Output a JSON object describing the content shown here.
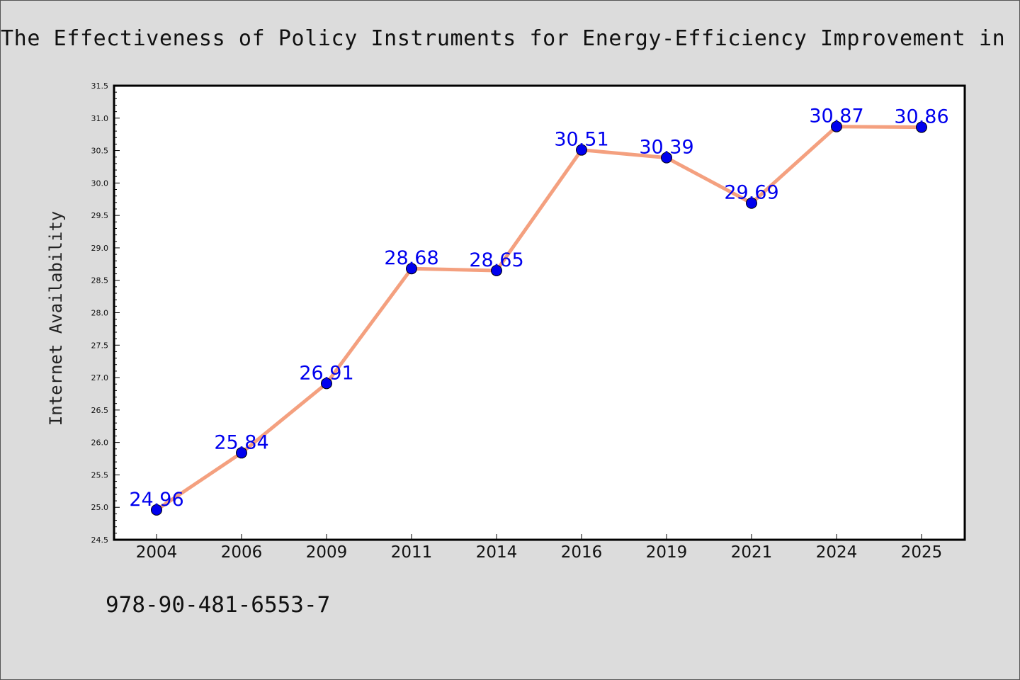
{
  "chart_data": {
    "type": "line",
    "title": "The Effectiveness of Policy Instruments for Energy-Efficiency Improvement in Fir",
    "ylabel": "Internet Availability",
    "xlabel": "",
    "categories": [
      "2004",
      "2006",
      "2009",
      "2011",
      "2014",
      "2016",
      "2019",
      "2021",
      "2024",
      "2025"
    ],
    "series": [
      {
        "values": [
          24.96,
          25.84,
          26.91,
          28.68,
          28.65,
          30.51,
          30.39,
          29.69,
          30.87,
          30.86
        ],
        "labels": [
          "24.96",
          "25.84",
          "26.91",
          "28.68",
          "28.65",
          "30.51",
          "30.39",
          "29.69",
          "30.87",
          "30.86"
        ],
        "line_color": "#f4a07f",
        "marker_color": "#0000ee",
        "label_color": "#0000ee"
      }
    ],
    "ylim": [
      24.5,
      31.5
    ],
    "yticks": [
      "24.5",
      "25.0",
      "25.5",
      "26.0",
      "26.5",
      "27.0",
      "27.5",
      "28.0",
      "28.5",
      "29.0",
      "29.5",
      "30.0",
      "30.5",
      "31.0",
      "31.5"
    ],
    "grid": false,
    "legend": "none"
  },
  "footer": {
    "isbn": "978-90-481-6553-7"
  },
  "colors": {
    "background": "#dcdcdc",
    "plot_area": "#ffffff",
    "line": "#f4a07f",
    "markers": "#0000ee",
    "data_labels": "#0000ee",
    "axes": "#000000"
  }
}
